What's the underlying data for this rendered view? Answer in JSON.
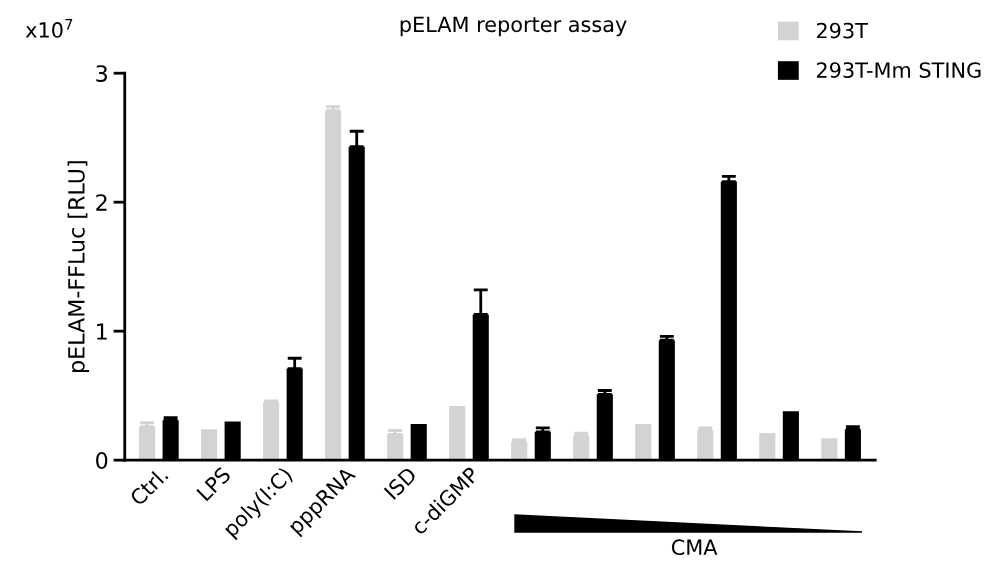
{
  "chart_data": {
    "type": "bar",
    "title": "pELAM reporter assay",
    "ylabel": "pELAM-FFLuc [RLU]",
    "categories": [
      "Ctrl.",
      "LPS",
      "poly(I:C)",
      "pppRNA",
      "ISD",
      "c-diGMP",
      null,
      null,
      null,
      null,
      null,
      null
    ],
    "series": [
      {
        "name": "293T",
        "color": "#d3d3d3",
        "values": [
          0.26,
          0.24,
          0.45,
          2.71,
          0.2,
          0.42,
          0.14,
          0.19,
          0.28,
          0.23,
          0.21,
          0.17
        ],
        "errors": [
          [
            0.26,
            0.29
          ],
          null,
          [
            0.45,
            0.46
          ],
          [
            2.71,
            2.74
          ],
          [
            0.2,
            0.23
          ],
          null,
          [
            0.14,
            0.16
          ],
          [
            0.19,
            0.21
          ],
          null,
          [
            0.23,
            0.25
          ],
          null,
          null
        ]
      },
      {
        "name": "293T-Mm STING",
        "color": "#000000",
        "values": [
          0.31,
          0.3,
          0.71,
          2.43,
          0.28,
          1.13,
          0.22,
          0.51,
          0.93,
          2.16,
          0.38,
          0.24
        ],
        "errors": [
          [
            0.31,
            0.33
          ],
          null,
          [
            0.71,
            0.79
          ],
          [
            2.43,
            2.55
          ],
          null,
          [
            1.13,
            1.32
          ],
          [
            0.22,
            0.25
          ],
          [
            0.51,
            0.54
          ],
          [
            0.93,
            0.96
          ],
          [
            2.16,
            2.2
          ],
          null,
          [
            0.24,
            0.26
          ]
        ]
      }
    ],
    "ylim": [
      0,
      3
    ],
    "yticks": [
      0,
      1,
      2,
      3
    ],
    "grid": false,
    "legend": "top right",
    "annotations": [
      "x10$^{7}$",
      "CMA"
    ]
  }
}
